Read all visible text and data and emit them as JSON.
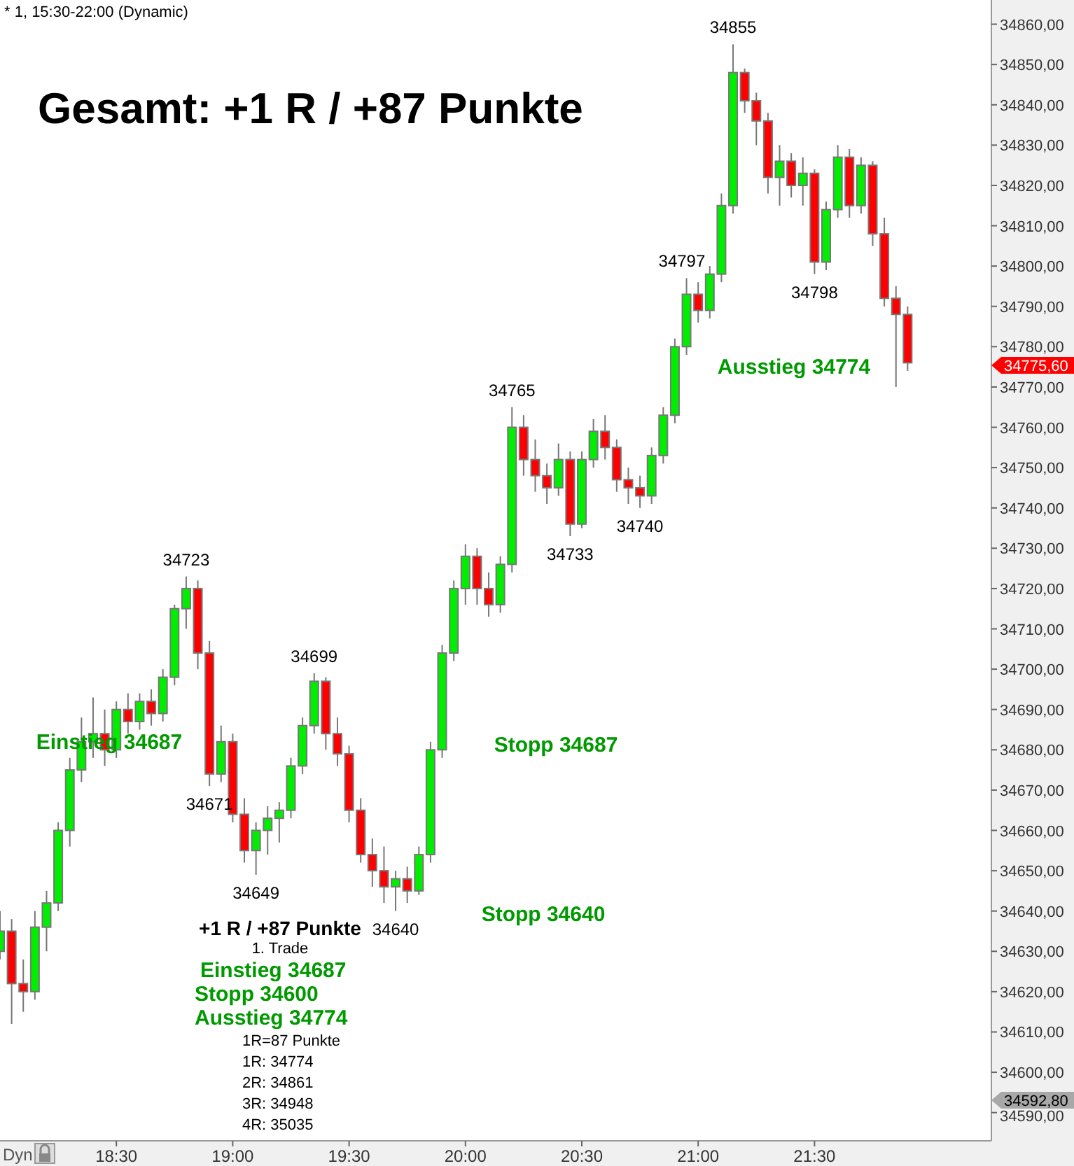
{
  "chart_data": {
    "type": "candlestick",
    "title": "Gesamt: +1 R / +87 Punkte",
    "subtitle": "* 1, 15:30-22:00 (Dynamic)",
    "x": [
      18.0,
      18.05,
      18.1,
      18.15,
      18.2,
      18.25,
      18.3,
      18.35,
      18.4,
      18.45,
      18.5,
      18.55,
      18.6,
      18.65,
      18.7,
      18.75,
      18.8,
      18.85,
      18.9,
      18.95,
      19.0,
      19.05,
      19.1,
      19.15,
      19.2,
      19.25,
      19.3,
      19.35,
      19.4,
      19.45,
      19.5,
      19.55,
      19.6,
      19.65,
      19.7,
      19.75,
      19.8,
      19.85,
      19.9,
      19.95,
      20.0,
      20.05,
      20.1,
      20.15,
      20.2,
      20.25,
      20.3,
      20.35,
      20.4,
      20.45,
      20.5,
      20.55,
      20.6,
      20.65,
      20.7,
      20.75,
      20.8,
      20.85,
      20.9,
      20.95,
      21.0,
      21.05,
      21.1,
      21.15,
      21.2,
      21.25,
      21.3,
      21.35,
      21.4,
      21.45,
      21.5,
      21.55,
      21.6,
      21.65,
      21.7,
      21.75,
      21.8,
      21.85,
      21.9
    ],
    "ohlc": [
      [
        34630,
        34640,
        34628,
        34635
      ],
      [
        34635,
        34638,
        34612,
        34622
      ],
      [
        34622,
        34628,
        34615,
        34620
      ],
      [
        34620,
        34640,
        34618,
        34636
      ],
      [
        34636,
        34645,
        34630,
        34642
      ],
      [
        34642,
        34662,
        34640,
        34660
      ],
      [
        34660,
        34678,
        34656,
        34675
      ],
      [
        34675,
        34688,
        34672,
        34682
      ],
      [
        34682,
        34693,
        34678,
        34684
      ],
      [
        34684,
        34690,
        34676,
        34680
      ],
      [
        34680,
        34692,
        34678,
        34690
      ],
      [
        34690,
        34694,
        34684,
        34687
      ],
      [
        34687,
        34694,
        34685,
        34692
      ],
      [
        34692,
        34695,
        34686,
        34689
      ],
      [
        34689,
        34700,
        34687,
        34698
      ],
      [
        34698,
        34716,
        34696,
        34715
      ],
      [
        34715,
        34723,
        34710,
        34720
      ],
      [
        34720,
        34722,
        34700,
        34704
      ],
      [
        34704,
        34707,
        34671,
        34674
      ],
      [
        34674,
        34686,
        34672,
        34682
      ],
      [
        34682,
        34684,
        34662,
        34664
      ],
      [
        34664,
        34668,
        34652,
        34655
      ],
      [
        34655,
        34662,
        34649,
        34660
      ],
      [
        34660,
        34666,
        34654,
        34663
      ],
      [
        34663,
        34667,
        34657,
        34665
      ],
      [
        34665,
        34678,
        34663,
        34676
      ],
      [
        34676,
        34688,
        34674,
        34686
      ],
      [
        34686,
        34699,
        34684,
        34697
      ],
      [
        34697,
        34698,
        34680,
        34684
      ],
      [
        34684,
        34688,
        34676,
        34679
      ],
      [
        34679,
        34681,
        34662,
        34665
      ],
      [
        34665,
        34668,
        34652,
        34654
      ],
      [
        34654,
        34658,
        34646,
        34650
      ],
      [
        34650,
        34656,
        34642,
        34646
      ],
      [
        34646,
        34650,
        34640,
        34648
      ],
      [
        34648,
        34651,
        34642,
        34645
      ],
      [
        34645,
        34656,
        34644,
        34654
      ],
      [
        34654,
        34682,
        34652,
        34680
      ],
      [
        34680,
        34706,
        34678,
        34704
      ],
      [
        34704,
        34722,
        34702,
        34720
      ],
      [
        34720,
        34731,
        34716,
        34728
      ],
      [
        34728,
        34730,
        34716,
        34720
      ],
      [
        34720,
        34724,
        34713,
        34716
      ],
      [
        34716,
        34728,
        34714,
        34726
      ],
      [
        34726,
        34765,
        34724,
        34760
      ],
      [
        34760,
        34763,
        34748,
        34752
      ],
      [
        34752,
        34757,
        34744,
        34748
      ],
      [
        34748,
        34751,
        34741,
        34745
      ],
      [
        34745,
        34756,
        34743,
        34752
      ],
      [
        34752,
        34754,
        34733,
        34736
      ],
      [
        34736,
        34754,
        34735,
        34752
      ],
      [
        34752,
        34762,
        34750,
        34759
      ],
      [
        34759,
        34763,
        34752,
        34755
      ],
      [
        34755,
        34757,
        34744,
        34747
      ],
      [
        34747,
        34750,
        34741,
        34745
      ],
      [
        34745,
        34748,
        34740,
        34743
      ],
      [
        34743,
        34755,
        34741,
        34753
      ],
      [
        34753,
        34765,
        34751,
        34763
      ],
      [
        34763,
        34782,
        34761,
        34780
      ],
      [
        34780,
        34797,
        34778,
        34793
      ],
      [
        34793,
        34796,
        34786,
        34789
      ],
      [
        34789,
        34800,
        34787,
        34798
      ],
      [
        34798,
        34818,
        34796,
        34815
      ],
      [
        34815,
        34855,
        34813,
        34848
      ],
      [
        34848,
        34849,
        34838,
        34841
      ],
      [
        34841,
        34843,
        34830,
        34836
      ],
      [
        34836,
        34838,
        34818,
        34822
      ],
      [
        34822,
        34830,
        34815,
        34826
      ],
      [
        34826,
        34828,
        34817,
        34820
      ],
      [
        34820,
        34827,
        34815,
        34823
      ],
      [
        34823,
        34824,
        34798,
        34801
      ],
      [
        34801,
        34816,
        34799,
        34814
      ],
      [
        34814,
        34830,
        34812,
        34827
      ],
      [
        34827,
        34829,
        34812,
        34815
      ],
      [
        34815,
        34827,
        34813,
        34825
      ],
      [
        34825,
        34826,
        34805,
        34808
      ],
      [
        34808,
        34812,
        34790,
        34792
      ],
      [
        34792,
        34795,
        34770,
        34788
      ],
      [
        34788,
        34790,
        34774,
        34776
      ]
    ],
    "colors": [
      "#00ee00",
      "#ff0000",
      "#ff0000",
      "#00ee00",
      "#00ee00",
      "#00ee00",
      "#00ee00",
      "#00ee00",
      "#00ee00",
      "#ff0000",
      "#00ee00",
      "#ff0000",
      "#00ee00",
      "#ff0000",
      "#00ee00",
      "#00ee00",
      "#00ee00",
      "#ff0000",
      "#ff0000",
      "#00ee00",
      "#ff0000",
      "#ff0000",
      "#00ee00",
      "#00ee00",
      "#00ee00",
      "#00ee00",
      "#00ee00",
      "#00ee00",
      "#ff0000",
      "#ff0000",
      "#ff0000",
      "#ff0000",
      "#ff0000",
      "#ff0000",
      "#00ee00",
      "#ff0000",
      "#00ee00",
      "#00ee00",
      "#00ee00",
      "#00ee00",
      "#00ee00",
      "#ff0000",
      "#ff0000",
      "#00ee00",
      "#00ee00",
      "#ff0000",
      "#ff0000",
      "#ff0000",
      "#00ee00",
      "#ff0000",
      "#00ee00",
      "#00ee00",
      "#ff0000",
      "#ff0000",
      "#ff0000",
      "#ff0000",
      "#00ee00",
      "#00ee00",
      "#00ee00",
      "#00ee00",
      "#ff0000",
      "#00ee00",
      "#00ee00",
      "#00ee00",
      "#ff0000",
      "#ff0000",
      "#ff0000",
      "#00ee00",
      "#ff0000",
      "#00ee00",
      "#ff0000",
      "#00ee00",
      "#00ee00",
      "#ff0000",
      "#00ee00",
      "#ff0000",
      "#ff0000",
      "#ff0000",
      "#ff0000"
    ],
    "xlim": [
      18.0,
      22.26
    ],
    "ylim": [
      34583,
      34866
    ],
    "xticks": [
      {
        "value": 18.5,
        "label": "18:30"
      },
      {
        "value": 19,
        "label": "19:00"
      },
      {
        "value": 19.5,
        "label": "19:30"
      },
      {
        "value": 20,
        "label": "20:00"
      },
      {
        "value": 20.5,
        "label": "20:30"
      },
      {
        "value": 21,
        "label": "21:00"
      },
      {
        "value": 21.5,
        "label": "21:30"
      }
    ],
    "yticks": [
      {
        "value": 34590,
        "label": "34590,00"
      },
      {
        "value": 34600,
        "label": "34600,00"
      },
      {
        "value": 34610,
        "label": "34610,00"
      },
      {
        "value": 34620,
        "label": "34620,00"
      },
      {
        "value": 34630,
        "label": "34630,00"
      },
      {
        "value": 34640,
        "label": "34640,00"
      },
      {
        "value": 34650,
        "label": "34650,00"
      },
      {
        "value": 34660,
        "label": "34660,00"
      },
      {
        "value": 34670,
        "label": "34670,00"
      },
      {
        "value": 34680,
        "label": "34680,00"
      },
      {
        "value": 34690,
        "label": "34690,00"
      },
      {
        "value": 34700,
        "label": "34700,00"
      },
      {
        "value": 34710,
        "label": "34710,00"
      },
      {
        "value": 34720,
        "label": "34720,00"
      },
      {
        "value": 34730,
        "label": "34730,00"
      },
      {
        "value": 34740,
        "label": "34740,00"
      },
      {
        "value": 34750,
        "label": "34750,00"
      },
      {
        "value": 34760,
        "label": "34760,00"
      },
      {
        "value": 34770,
        "label": "34770,00"
      },
      {
        "value": 34780,
        "label": "34780,00"
      },
      {
        "value": 34790,
        "label": "34790,00"
      },
      {
        "value": 34800,
        "label": "34800,00"
      },
      {
        "value": 34810,
        "label": "34810,00"
      },
      {
        "value": 34820,
        "label": "34820,00"
      },
      {
        "value": 34830,
        "label": "34830,00"
      },
      {
        "value": 34840,
        "label": "34840,00"
      },
      {
        "value": 34850,
        "label": "34850,00"
      },
      {
        "value": 34860,
        "label": "34860,00"
      }
    ],
    "annotations": [
      {
        "text": "34723",
        "x": 18.8,
        "y": 34723
      },
      {
        "text": "34671",
        "x": 18.9,
        "y": 34671
      },
      {
        "text": "34649",
        "x": 19.1,
        "y": 34649
      },
      {
        "text": "34699",
        "x": 19.35,
        "y": 34699
      },
      {
        "text": "34640",
        "x": 19.7,
        "y": 34640
      },
      {
        "text": "34765",
        "x": 20.2,
        "y": 34765
      },
      {
        "text": "34733",
        "x": 20.45,
        "y": 34733
      },
      {
        "text": "34740",
        "x": 20.75,
        "y": 34740
      },
      {
        "text": "34797",
        "x": 20.93,
        "y": 34797
      },
      {
        "text": "34855",
        "x": 21.15,
        "y": 34855
      },
      {
        "text": "34798",
        "x": 21.5,
        "y": 34798
      },
      "+1 R / +87 Punkte",
      "1. Trade",
      "Einstieg 34687",
      "Stopp 34600",
      "Ausstieg 34774",
      "1R=87 Punkte",
      "1R: 34774",
      "2R: 34861",
      "3R: 34948",
      "4R: 35035",
      "Dyn",
      "Einstieg 34687",
      "Stopp 34687",
      "Stopp 34640",
      "Ausstieg 34774",
      "34775,60",
      "34592,80"
    ]
  }
}
